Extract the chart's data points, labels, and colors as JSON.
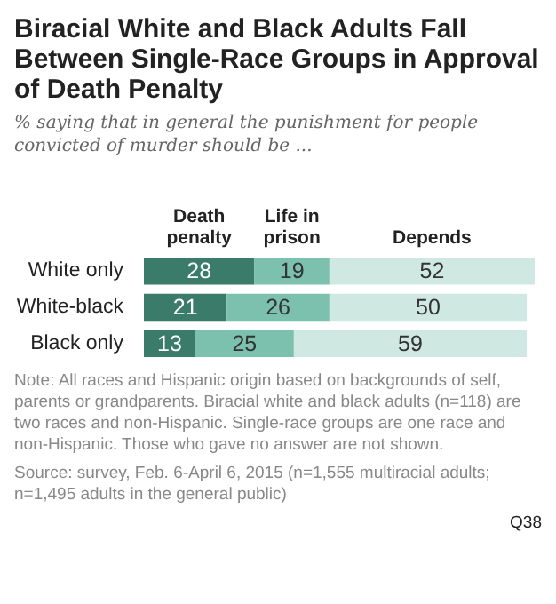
{
  "chart_data": {
    "type": "bar",
    "orientation": "horizontal",
    "stacked": true,
    "title": "Biracial White and Black Adults Fall Between Single-Race Groups in Approval of Death Penalty",
    "subtitle": "% saying that in general the punishment for people convicted of murder should be ...",
    "categories": [
      "White only",
      "White-black",
      "Black only"
    ],
    "series": [
      {
        "name": "Death penalty",
        "color": "#3b7b6a",
        "values": [
          28,
          21,
          13
        ]
      },
      {
        "name": "Life in prison",
        "color": "#7bc1ad",
        "values": [
          19,
          26,
          25
        ]
      },
      {
        "name": "Depends",
        "color": "#cfe8e1",
        "values": [
          52,
          50,
          59
        ]
      }
    ],
    "data_labels": true,
    "legend": false,
    "tick_labels": "y",
    "annotations": [
      "Note: All races and Hispanic origin based on backgrounds of self, parents or grandparents. Biracial white and black adults (n=118) are two races and non-Hispanic. Single-race groups are one race and non-Hispanic. Those who gave no answer are not shown.",
      "Source: survey, Feb. 6-April 6, 2015 (n=1,555 multiracial adults; n=1,495 adults in the general public)",
      "Q38"
    ]
  }
}
